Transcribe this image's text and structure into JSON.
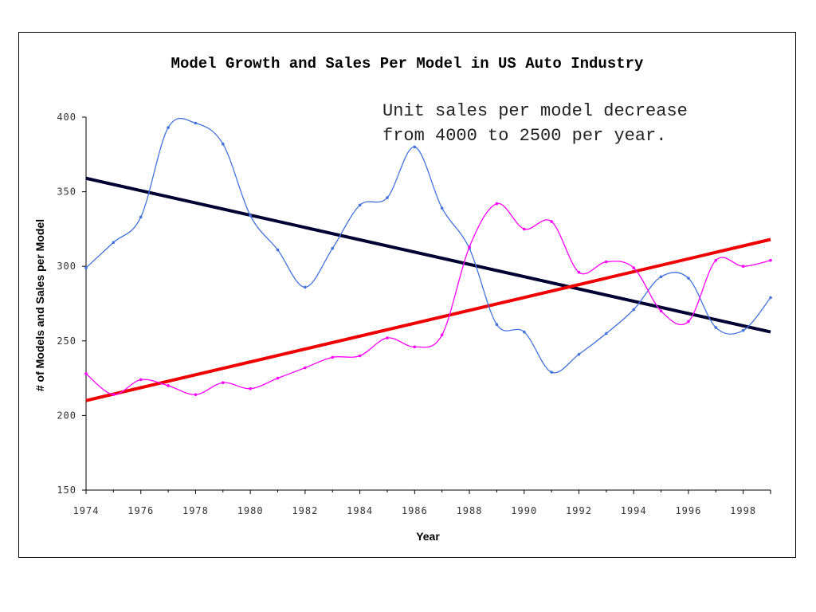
{
  "chart_data": {
    "type": "line",
    "title": "Model Growth and Sales Per Model in US Auto Industry",
    "annotation": [
      "Unit sales per model decrease",
      "from 4000 to 2500 per year."
    ],
    "xlabel": "Year",
    "ylabel": "# of Models and Sales per Model",
    "xlim": [
      1974,
      1999
    ],
    "ylim": [
      150,
      400
    ],
    "x_ticks": [
      "1974",
      "1976",
      "1978",
      "1980",
      "1982",
      "1984",
      "1986",
      "1988",
      "1990",
      "1992",
      "1994",
      "1996",
      "1998"
    ],
    "y_ticks": [
      "150",
      "200",
      "250",
      "300",
      "350",
      "400"
    ],
    "grid": false,
    "legend": "none",
    "x": [
      1974,
      1975,
      1976,
      1977,
      1978,
      1979,
      1980,
      1981,
      1982,
      1983,
      1984,
      1985,
      1986,
      1987,
      1988,
      1989,
      1990,
      1991,
      1992,
      1993,
      1994,
      1995,
      1996,
      1997,
      1998,
      1999
    ],
    "series": [
      {
        "color": "#4472dc",
        "values": [
          299,
          316,
          333,
          393,
          396,
          382,
          334,
          311,
          286,
          312,
          341,
          346,
          380,
          339,
          312,
          261,
          256,
          229,
          241,
          255,
          271,
          293,
          292,
          259,
          257,
          279
        ]
      },
      {
        "color": "#ff00ff",
        "values": [
          228,
          214,
          224,
          220,
          214,
          222,
          218,
          225,
          232,
          239,
          240,
          252,
          246,
          254,
          313,
          342,
          325,
          330,
          296,
          303,
          299,
          270,
          263,
          304,
          300,
          304
        ]
      }
    ],
    "trendlines": [
      {
        "color": "#000033",
        "from": [
          1974,
          359
        ],
        "to": [
          1999,
          256
        ]
      },
      {
        "color": "#ee0000",
        "from": [
          1974,
          210
        ],
        "to": [
          1999,
          318
        ]
      }
    ]
  }
}
